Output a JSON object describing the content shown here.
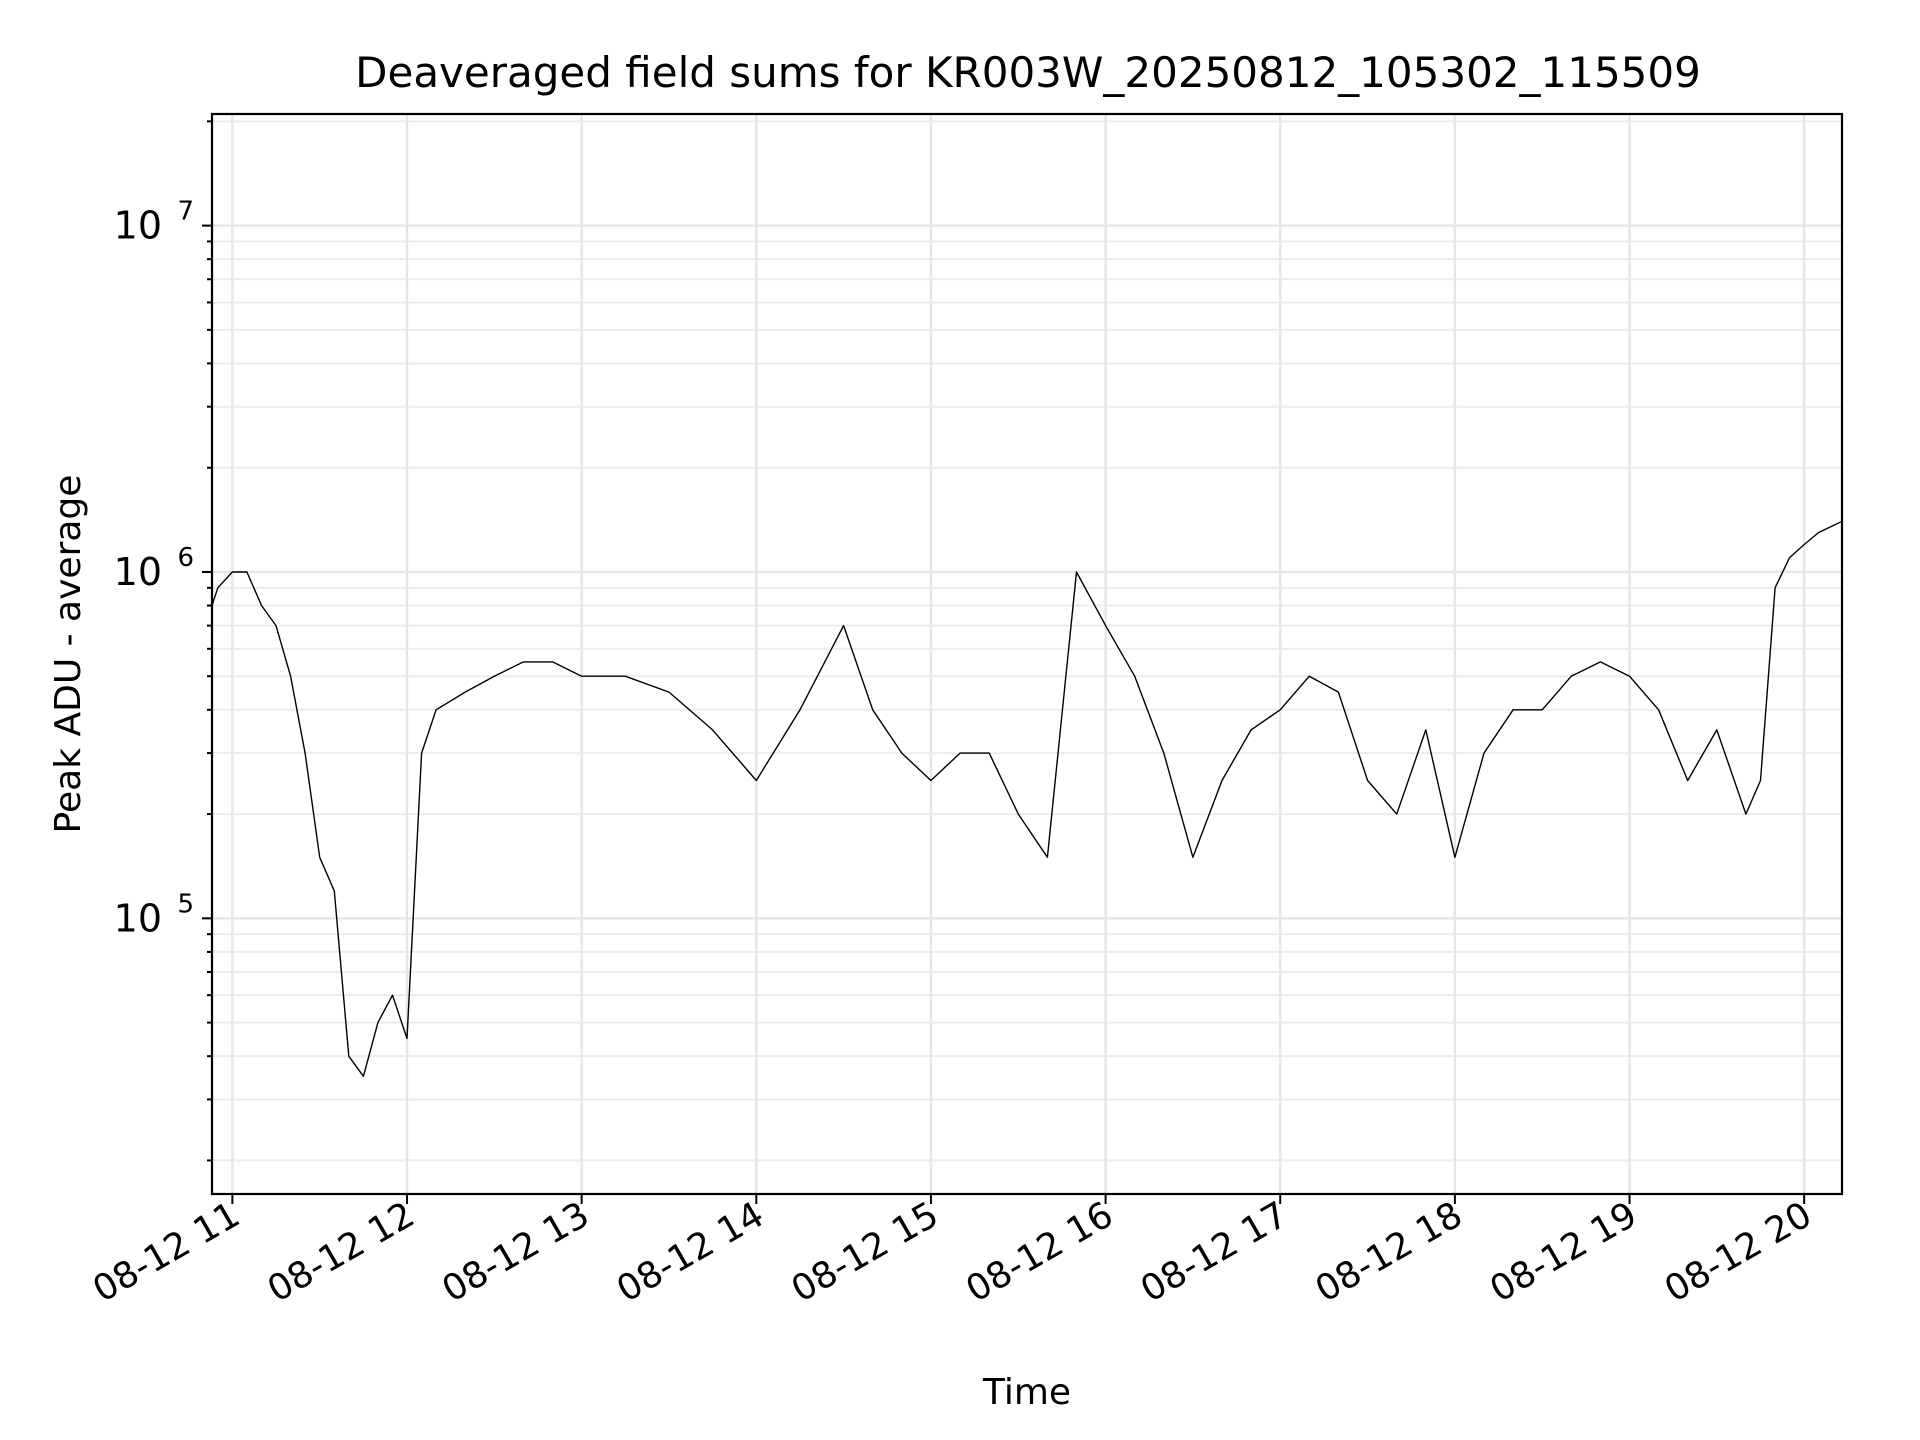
{
  "chart_data": {
    "type": "line",
    "title": "Deaveraged field sums for KR003W_20250812_105302_115509",
    "xlabel": "Time",
    "ylabel": "Peak ADU - average",
    "yscale": "log",
    "grid": true,
    "grid_minor": true,
    "xlim": [
      "2025-08-12 10:53",
      "2025-08-12 20:13"
    ],
    "ylim": [
      16000,
      21000000
    ],
    "x_ticks": [
      {
        "value": "2025-08-12 11:00",
        "label": "08-12 11"
      },
      {
        "value": "2025-08-12 12:00",
        "label": "08-12 12"
      },
      {
        "value": "2025-08-12 13:00",
        "label": "08-12 13"
      },
      {
        "value": "2025-08-12 14:00",
        "label": "08-12 14"
      },
      {
        "value": "2025-08-12 15:00",
        "label": "08-12 15"
      },
      {
        "value": "2025-08-12 16:00",
        "label": "08-12 16"
      },
      {
        "value": "2025-08-12 17:00",
        "label": "08-12 17"
      },
      {
        "value": "2025-08-12 18:00",
        "label": "08-12 18"
      },
      {
        "value": "2025-08-12 19:00",
        "label": "08-12 19"
      },
      {
        "value": "2025-08-12 20:00",
        "label": "08-12 20"
      }
    ],
    "y_ticks": [
      {
        "value": 100000,
        "base": "10",
        "exp": "5"
      },
      {
        "value": 1000000,
        "base": "10",
        "exp": "6"
      },
      {
        "value": 10000000,
        "base": "10",
        "exp": "7"
      }
    ],
    "series": [
      {
        "color": "#000000",
        "x": [
          "2025-08-12 10:53",
          "2025-08-12 10:55",
          "2025-08-12 11:00",
          "2025-08-12 11:05",
          "2025-08-12 11:10",
          "2025-08-12 11:15",
          "2025-08-12 11:20",
          "2025-08-12 11:25",
          "2025-08-12 11:30",
          "2025-08-12 11:35",
          "2025-08-12 11:40",
          "2025-08-12 11:45",
          "2025-08-12 11:50",
          "2025-08-12 11:55",
          "2025-08-12 12:00",
          "2025-08-12 12:05",
          "2025-08-12 12:10",
          "2025-08-12 12:20",
          "2025-08-12 12:30",
          "2025-08-12 12:40",
          "2025-08-12 12:50",
          "2025-08-12 13:00",
          "2025-08-12 13:15",
          "2025-08-12 13:30",
          "2025-08-12 13:45",
          "2025-08-12 14:00",
          "2025-08-12 14:15",
          "2025-08-12 14:30",
          "2025-08-12 14:40",
          "2025-08-12 14:50",
          "2025-08-12 15:00",
          "2025-08-12 15:10",
          "2025-08-12 15:20",
          "2025-08-12 15:30",
          "2025-08-12 15:40",
          "2025-08-12 15:50",
          "2025-08-12 16:00",
          "2025-08-12 16:10",
          "2025-08-12 16:20",
          "2025-08-12 16:30",
          "2025-08-12 16:40",
          "2025-08-12 16:50",
          "2025-08-12 17:00",
          "2025-08-12 17:10",
          "2025-08-12 17:20",
          "2025-08-12 17:30",
          "2025-08-12 17:40",
          "2025-08-12 17:50",
          "2025-08-12 18:00",
          "2025-08-12 18:10",
          "2025-08-12 18:20",
          "2025-08-12 18:30",
          "2025-08-12 18:40",
          "2025-08-12 18:50",
          "2025-08-12 19:00",
          "2025-08-12 19:10",
          "2025-08-12 19:20",
          "2025-08-12 19:30",
          "2025-08-12 19:40",
          "2025-08-12 19:45",
          "2025-08-12 19:50",
          "2025-08-12 19:55",
          "2025-08-12 20:00",
          "2025-08-12 20:05",
          "2025-08-12 20:13"
        ],
        "y": [
          800000,
          900000,
          1000000,
          1000000,
          800000,
          700000,
          500000,
          300000,
          150000,
          120000,
          40000,
          35000,
          50000,
          60000,
          45000,
          300000,
          400000,
          450000,
          500000,
          550000,
          550000,
          500000,
          500000,
          450000,
          350000,
          250000,
          400000,
          700000,
          400000,
          300000,
          250000,
          300000,
          300000,
          200000,
          150000,
          1000000,
          700000,
          500000,
          300000,
          150000,
          250000,
          350000,
          400000,
          500000,
          450000,
          250000,
          200000,
          350000,
          150000,
          300000,
          400000,
          400000,
          500000,
          550000,
          500000,
          400000,
          250000,
          350000,
          200000,
          250000,
          900000,
          1100000,
          1200000,
          1300000,
          1400000
        ]
      }
    ]
  }
}
